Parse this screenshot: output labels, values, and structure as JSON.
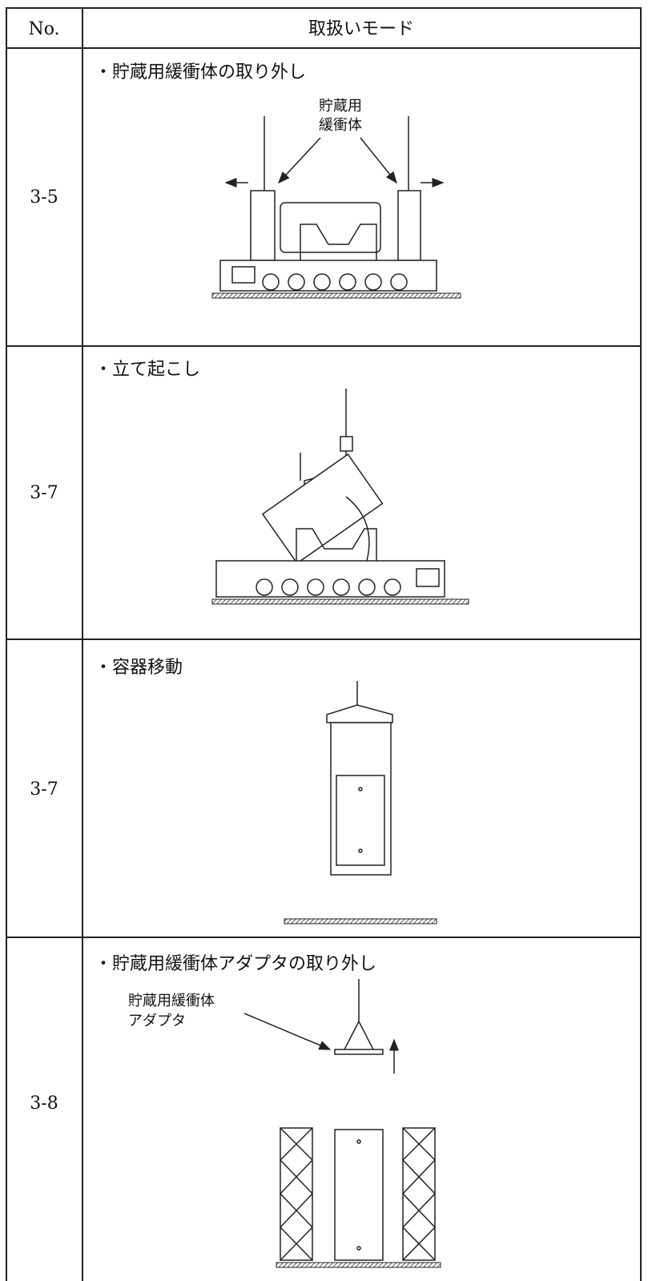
{
  "table": {
    "header": [
      "No.",
      "取扱いモード"
    ],
    "rows": [
      {
        "no": "3-5",
        "mode": "・貯蔵用緩衝体の取り外し",
        "labels": [
          "貯蔵用",
          "緩衝体"
        ]
      },
      {
        "no": "3-7",
        "mode": "・立て起こし"
      },
      {
        "no": "3-7",
        "mode": "・容器移動"
      },
      {
        "no": "3-8",
        "mode": "・貯蔵用緩衝体アダプタの取り外し",
        "labels": [
          "貯蔵用緩衝体",
          "アダプタ"
        ]
      }
    ]
  }
}
